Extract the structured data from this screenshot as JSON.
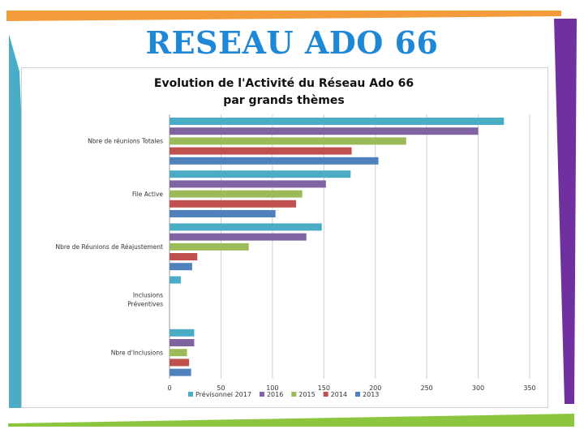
{
  "slide": {
    "title": "RESEAU ADO 66"
  },
  "colors": {
    "title": "#1e88d6",
    "teal_bar": "#4bacc6",
    "purple_bar": "#8064a2",
    "green_bar": "#8cc63f",
    "border_orange": "#f39c3c"
  },
  "chart_data": {
    "type": "bar",
    "orientation": "horizontal",
    "title_line1": "Evolution de l'Activité du Réseau Ado 66",
    "title_line2": "par grands thèmes",
    "categories": [
      "Nbre de réunions Totales",
      "File Active",
      "Nbre de Réunions de Réajustement",
      "Inclusions Préventives",
      "Nbre d'Inclusions"
    ],
    "category_lines": [
      [
        "Nbre de réunions Totales"
      ],
      [
        "File Active"
      ],
      [
        "Nbre de Réunions de Réajustement"
      ],
      [
        "Inclusions",
        "Préventives"
      ],
      [
        "Nbre d'Inclusions"
      ]
    ],
    "series": [
      {
        "name": "Prévisonnel 2017",
        "color": "#4bacc6",
        "values": [
          325,
          176,
          148,
          11,
          24
        ]
      },
      {
        "name": "2016",
        "color": "#8064a2",
        "values": [
          300,
          152,
          133,
          0,
          24
        ]
      },
      {
        "name": "2015",
        "color": "#9bbb59",
        "values": [
          230,
          129,
          77,
          0,
          17
        ]
      },
      {
        "name": "2014",
        "color": "#c0504d",
        "values": [
          177,
          123,
          27,
          0,
          19
        ]
      },
      {
        "name": "2013",
        "color": "#4f81bd",
        "values": [
          203,
          103,
          22,
          0,
          21
        ]
      }
    ],
    "xlim": [
      0,
      350
    ],
    "xticks": [
      "0",
      "50",
      "100",
      "150",
      "200",
      "250",
      "300",
      "350"
    ],
    "grid": true,
    "legend_position": "bottom"
  }
}
